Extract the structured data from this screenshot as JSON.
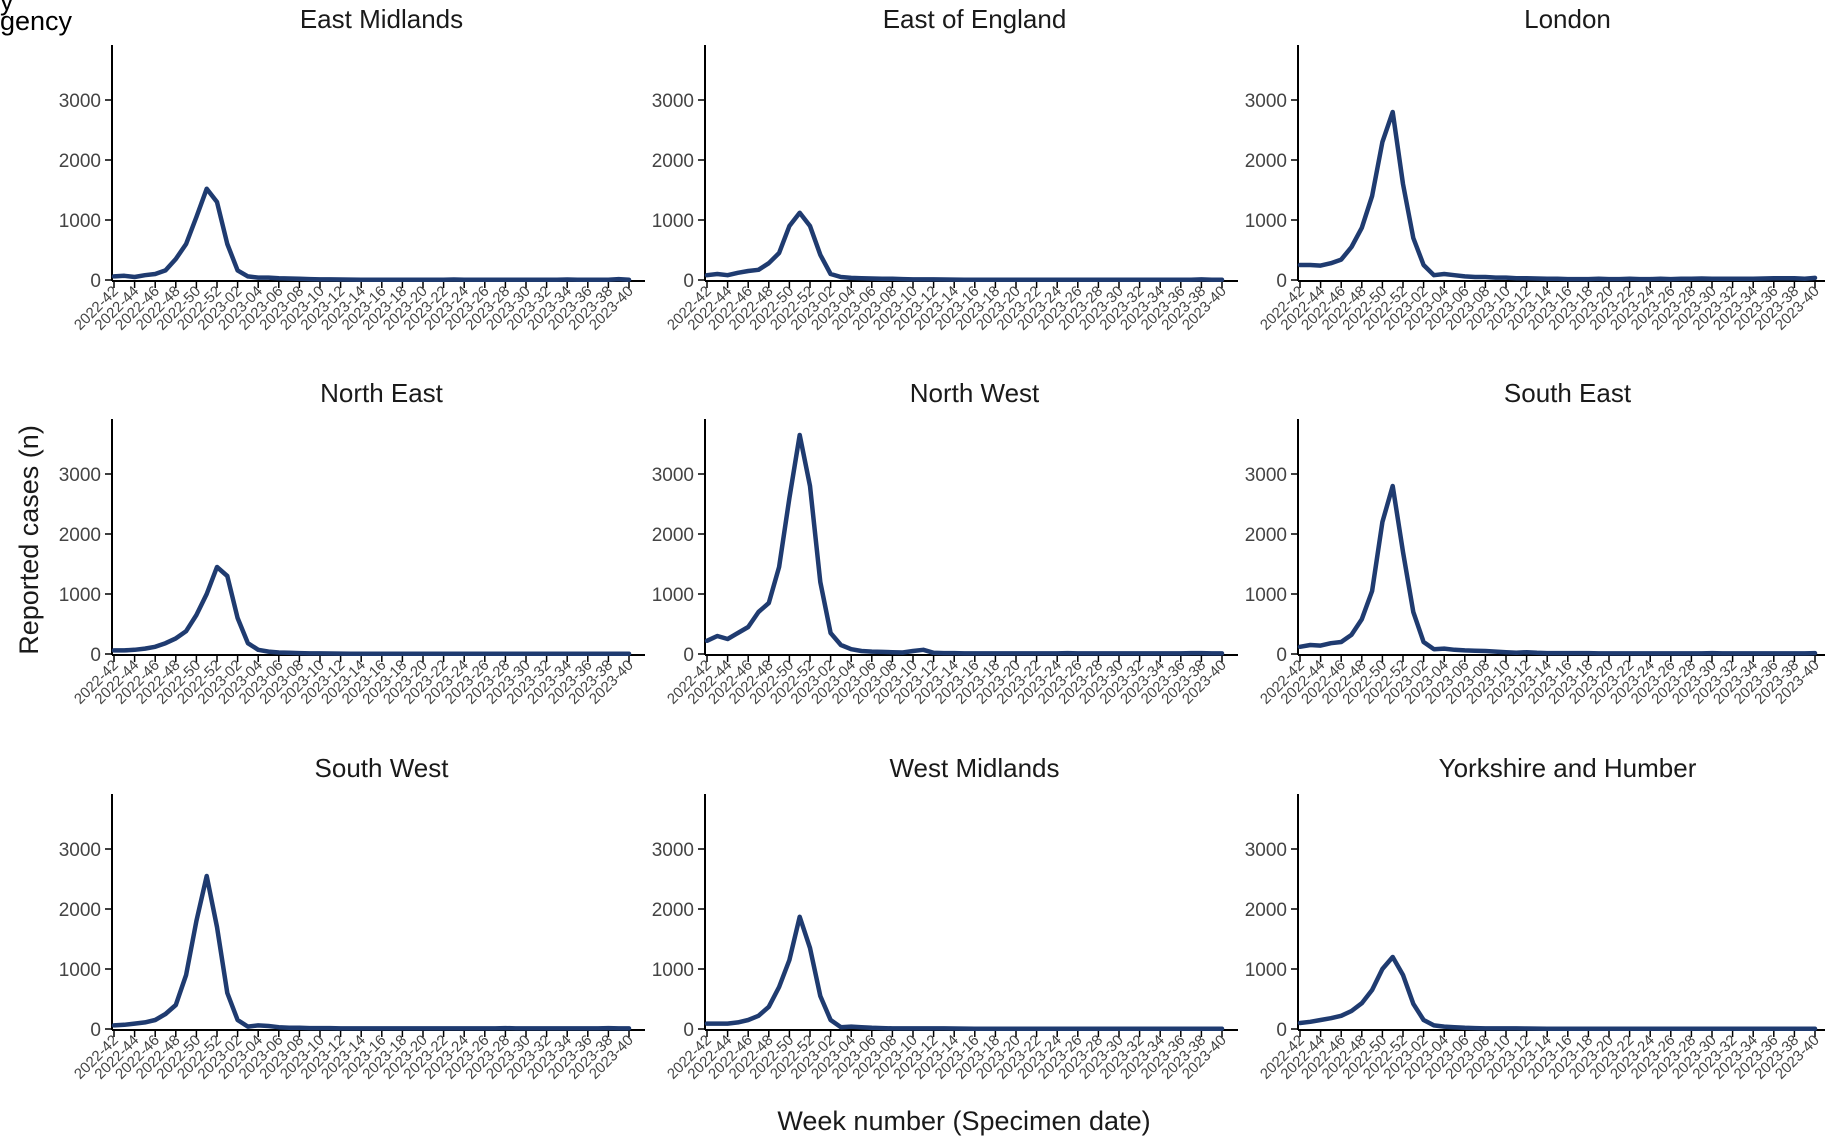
{
  "header": {
    "title_fragment_top": "y",
    "title_fragment": "gency"
  },
  "chart_data": {
    "type": "line",
    "xlabel": "Week number (Specimen date)",
    "ylabel": "Reported cases (n)",
    "ylim": [
      0,
      3700
    ],
    "y_ticks": [
      0,
      1000,
      2000,
      3000
    ],
    "grid": false,
    "line_color": "#1f3b70",
    "x": [
      "2022-42",
      "2022-43",
      "2022-44",
      "2022-45",
      "2022-46",
      "2022-47",
      "2022-48",
      "2022-49",
      "2022-50",
      "2022-51",
      "2022-52",
      "2023-01",
      "2023-02",
      "2023-03",
      "2023-04",
      "2023-05",
      "2023-06",
      "2023-07",
      "2023-08",
      "2023-09",
      "2023-10",
      "2023-11",
      "2023-12",
      "2023-13",
      "2023-14",
      "2023-15",
      "2023-16",
      "2023-17",
      "2023-18",
      "2023-19",
      "2023-20",
      "2023-21",
      "2023-22",
      "2023-23",
      "2023-24",
      "2023-25",
      "2023-26",
      "2023-27",
      "2023-28",
      "2023-29",
      "2023-30",
      "2023-31",
      "2023-32",
      "2023-33",
      "2023-34",
      "2023-35",
      "2023-36",
      "2023-37",
      "2023-38",
      "2023-39",
      "2023-40"
    ],
    "x_tick_labels": [
      "2022-42",
      "2022-44",
      "2022-46",
      "2022-48",
      "2022-50",
      "2022-52",
      "2023-02",
      "2023-04",
      "2023-06",
      "2023-08",
      "2023-10",
      "2023-12",
      "2023-14",
      "2023-16",
      "2023-18",
      "2023-20",
      "2023-22",
      "2023-24",
      "2023-26",
      "2023-28",
      "2023-30",
      "2023-32",
      "2023-34",
      "2023-36",
      "2023-38",
      "2023-40"
    ],
    "panels": [
      {
        "title": "East Midlands",
        "values": [
          60,
          70,
          50,
          80,
          100,
          160,
          350,
          600,
          1050,
          1520,
          1300,
          600,
          160,
          60,
          40,
          40,
          30,
          25,
          20,
          15,
          10,
          10,
          8,
          6,
          5,
          5,
          5,
          5,
          5,
          5,
          5,
          5,
          5,
          8,
          5,
          5,
          5,
          5,
          5,
          5,
          5,
          5,
          5,
          5,
          8,
          5,
          5,
          5,
          5,
          15,
          5
        ]
      },
      {
        "title": "East of England",
        "values": [
          80,
          100,
          80,
          120,
          150,
          170,
          280,
          450,
          900,
          1120,
          900,
          420,
          100,
          50,
          35,
          30,
          25,
          20,
          20,
          15,
          10,
          10,
          10,
          8,
          6,
          5,
          5,
          5,
          5,
          5,
          5,
          5,
          5,
          5,
          5,
          5,
          5,
          5,
          5,
          5,
          5,
          5,
          5,
          5,
          5,
          5,
          5,
          5,
          10,
          5,
          5
        ]
      },
      {
        "title": "London",
        "values": [
          250,
          250,
          240,
          280,
          340,
          550,
          870,
          1400,
          2300,
          2800,
          1600,
          700,
          250,
          80,
          100,
          80,
          60,
          50,
          50,
          40,
          40,
          30,
          30,
          25,
          20,
          20,
          15,
          15,
          15,
          20,
          15,
          15,
          20,
          15,
          15,
          20,
          15,
          20,
          20,
          25,
          20,
          20,
          20,
          20,
          20,
          25,
          30,
          30,
          30,
          20,
          35
        ]
      },
      {
        "title": "North East",
        "values": [
          60,
          60,
          70,
          90,
          120,
          180,
          260,
          380,
          650,
          1000,
          1450,
          1300,
          600,
          180,
          70,
          40,
          25,
          20,
          15,
          10,
          10,
          8,
          6,
          5,
          5,
          5,
          5,
          5,
          5,
          5,
          5,
          5,
          5,
          5,
          5,
          5,
          5,
          5,
          5,
          5,
          5,
          5,
          5,
          5,
          5,
          5,
          5,
          5,
          5,
          5,
          5
        ]
      },
      {
        "title": "North West",
        "values": [
          220,
          300,
          250,
          350,
          450,
          700,
          850,
          1450,
          2600,
          3650,
          2800,
          1200,
          350,
          150,
          80,
          50,
          40,
          35,
          30,
          25,
          50,
          70,
          20,
          15,
          15,
          10,
          10,
          10,
          10,
          10,
          10,
          10,
          10,
          10,
          10,
          15,
          10,
          10,
          10,
          10,
          10,
          10,
          10,
          10,
          10,
          10,
          10,
          15,
          15,
          10,
          10
        ]
      },
      {
        "title": "South East",
        "values": [
          120,
          150,
          140,
          180,
          200,
          320,
          580,
          1050,
          2200,
          2800,
          1700,
          700,
          200,
          80,
          90,
          70,
          60,
          55,
          50,
          40,
          30,
          20,
          30,
          20,
          15,
          15,
          15,
          15,
          15,
          10,
          10,
          10,
          10,
          10,
          10,
          10,
          10,
          10,
          10,
          10,
          15,
          10,
          10,
          10,
          10,
          10,
          10,
          10,
          10,
          10,
          15
        ]
      },
      {
        "title": "South West",
        "values": [
          60,
          70,
          90,
          110,
          150,
          250,
          400,
          900,
          1800,
          2550,
          1700,
          600,
          150,
          40,
          60,
          50,
          30,
          20,
          20,
          15,
          15,
          15,
          10,
          10,
          10,
          10,
          10,
          10,
          10,
          10,
          10,
          10,
          10,
          10,
          10,
          10,
          10,
          10,
          15,
          10,
          10,
          10,
          10,
          10,
          10,
          10,
          10,
          10,
          15,
          10,
          10
        ]
      },
      {
        "title": "West Midlands",
        "values": [
          90,
          90,
          90,
          110,
          150,
          220,
          370,
          700,
          1150,
          1870,
          1350,
          550,
          150,
          30,
          40,
          30,
          20,
          15,
          10,
          10,
          10,
          10,
          10,
          10,
          8,
          6,
          5,
          5,
          5,
          5,
          5,
          5,
          5,
          5,
          5,
          5,
          5,
          5,
          5,
          5,
          5,
          5,
          5,
          5,
          5,
          5,
          5,
          5,
          5,
          5,
          5
        ]
      },
      {
        "title": "Yorkshire and Humber",
        "values": [
          100,
          120,
          150,
          180,
          220,
          300,
          430,
          650,
          1000,
          1200,
          900,
          420,
          150,
          60,
          40,
          30,
          20,
          15,
          10,
          10,
          10,
          10,
          8,
          6,
          5,
          5,
          5,
          5,
          5,
          5,
          5,
          5,
          5,
          5,
          5,
          5,
          5,
          5,
          5,
          5,
          5,
          5,
          5,
          5,
          5,
          5,
          5,
          5,
          5,
          5,
          5
        ]
      }
    ]
  }
}
